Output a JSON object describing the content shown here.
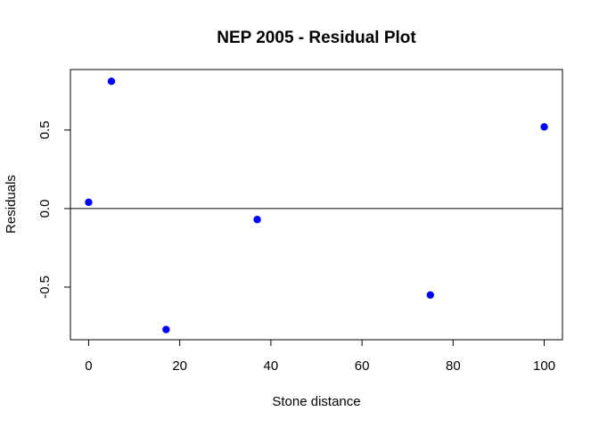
{
  "chart_data": {
    "type": "scatter",
    "title": "NEP 2005 - Residual Plot",
    "xlabel": "Stone distance",
    "ylabel": "Residuals",
    "xlim": [
      -4,
      104
    ],
    "ylim": [
      -0.835,
      0.885
    ],
    "x_ticks": [
      0,
      20,
      40,
      60,
      80,
      100
    ],
    "x_tick_labels": [
      "0",
      "20",
      "40",
      "60",
      "80",
      "100"
    ],
    "y_ticks": [
      -0.5,
      0.0,
      0.5
    ],
    "y_tick_labels": [
      "-0.5",
      "0.0",
      "0.5"
    ],
    "reference_line_y": 0,
    "grid": false,
    "point_color": "#0000ff",
    "series": [
      {
        "x": [
          0,
          5,
          17,
          37,
          75,
          100
        ],
        "y": [
          0.04,
          0.81,
          -0.77,
          -0.07,
          -0.55,
          0.52
        ]
      }
    ]
  }
}
